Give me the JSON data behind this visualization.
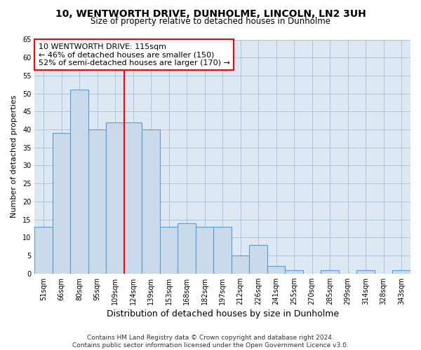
{
  "title": "10, WENTWORTH DRIVE, DUNHOLME, LINCOLN, LN2 3UH",
  "subtitle": "Size of property relative to detached houses in Dunholme",
  "xlabel": "Distribution of detached houses by size in Dunholme",
  "ylabel": "Number of detached properties",
  "bar_labels": [
    "51sqm",
    "66sqm",
    "80sqm",
    "95sqm",
    "109sqm",
    "124sqm",
    "139sqm",
    "153sqm",
    "168sqm",
    "182sqm",
    "197sqm",
    "212sqm",
    "226sqm",
    "241sqm",
    "255sqm",
    "270sqm",
    "285sqm",
    "299sqm",
    "314sqm",
    "328sqm",
    "343sqm"
  ],
  "bar_values": [
    13,
    39,
    51,
    40,
    42,
    42,
    40,
    13,
    14,
    13,
    13,
    5,
    8,
    2,
    1,
    0,
    1,
    0,
    1,
    0,
    1
  ],
  "bar_color": "#c9daea",
  "bar_edge_color": "#5b9bd5",
  "plot_bg_color": "#dde8f3",
  "ylim": [
    0,
    65
  ],
  "yticks": [
    0,
    5,
    10,
    15,
    20,
    25,
    30,
    35,
    40,
    45,
    50,
    55,
    60,
    65
  ],
  "red_line_x": 4.5,
  "annotation_title": "10 WENTWORTH DRIVE: 115sqm",
  "annotation_line1": "← 46% of detached houses are smaller (150)",
  "annotation_line2": "52% of semi-detached houses are larger (170) →",
  "footer_line1": "Contains HM Land Registry data © Crown copyright and database right 2024.",
  "footer_line2": "Contains public sector information licensed under the Open Government Licence v3.0.",
  "title_fontsize": 10,
  "subtitle_fontsize": 8.5,
  "xlabel_fontsize": 9,
  "ylabel_fontsize": 8,
  "tick_fontsize": 7,
  "annotation_fontsize": 8,
  "footer_fontsize": 6.5,
  "background_color": "#ffffff",
  "grid_color": "#a8c4e0"
}
